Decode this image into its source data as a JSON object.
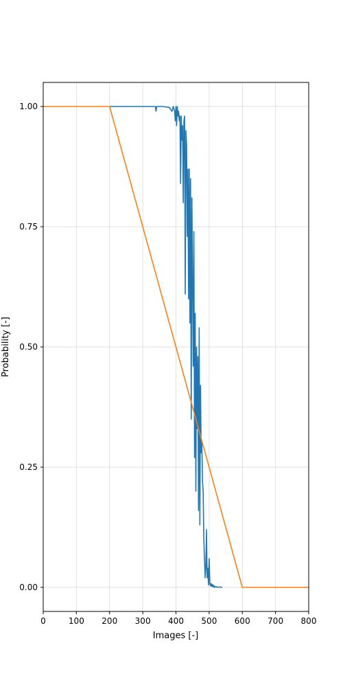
{
  "chart_data": {
    "type": "line",
    "title": "",
    "xlabel": "Images [-]",
    "ylabel": "Probability [-]",
    "xlim": [
      0,
      800
    ],
    "ylim": [
      -0.05,
      1.05
    ],
    "xticks": [
      0,
      100,
      200,
      300,
      400,
      500,
      600,
      700,
      800
    ],
    "xtick_labels": [
      "0",
      "100",
      "200",
      "300",
      "400",
      "500",
      "600",
      "700",
      "800"
    ],
    "yticks": [
      0.0,
      0.25,
      0.5,
      0.75,
      1.0
    ],
    "ytick_labels": [
      "0.00",
      "0.25",
      "0.50",
      "0.75",
      "1.00"
    ],
    "grid": true,
    "legend": "none",
    "series": [
      {
        "color": "#1f77b4",
        "x": [
          200,
          300,
          338,
          340,
          342,
          360,
          380,
          388,
          392,
          396,
          398,
          400,
          402,
          404,
          406,
          408,
          410,
          412,
          414,
          416,
          418,
          420,
          422,
          424,
          426,
          428,
          430,
          432,
          434,
          436,
          438,
          440,
          442,
          444,
          446,
          448,
          450,
          452,
          454,
          456,
          458,
          460,
          462,
          464,
          466,
          468,
          470,
          472,
          474,
          476,
          478,
          480,
          482,
          484,
          486,
          488,
          490,
          492,
          494,
          496,
          498,
          500,
          502,
          504,
          506,
          508,
          510,
          512,
          514,
          516,
          520,
          525,
          530,
          540
        ],
        "y": [
          1.0,
          1.0,
          1.0,
          0.99,
          1.0,
          1.0,
          0.998,
          0.99,
          1.0,
          0.99,
          0.97,
          1.0,
          0.96,
          1.0,
          0.98,
          0.99,
          0.97,
          0.98,
          0.84,
          0.98,
          0.93,
          0.96,
          0.8,
          0.97,
          0.98,
          0.61,
          0.95,
          0.92,
          0.73,
          0.87,
          0.6,
          0.87,
          0.55,
          0.85,
          0.35,
          0.81,
          0.64,
          0.46,
          0.74,
          0.27,
          0.57,
          0.2,
          0.5,
          0.33,
          0.48,
          0.16,
          0.54,
          0.13,
          0.42,
          0.28,
          0.3,
          0.22,
          0.2,
          0.1,
          0.06,
          0.02,
          0.04,
          0.12,
          0.02,
          0.04,
          0.005,
          0.06,
          0.01,
          0.003,
          0.008,
          0.002,
          0.006,
          0.001,
          0.004,
          0.0,
          0.002,
          0.0,
          0.001,
          0.0
        ]
      },
      {
        "color": "#ff7f0e",
        "x": [
          0,
          200,
          600,
          800
        ],
        "y": [
          1.0,
          1.0,
          0.0,
          0.0
        ]
      }
    ]
  }
}
